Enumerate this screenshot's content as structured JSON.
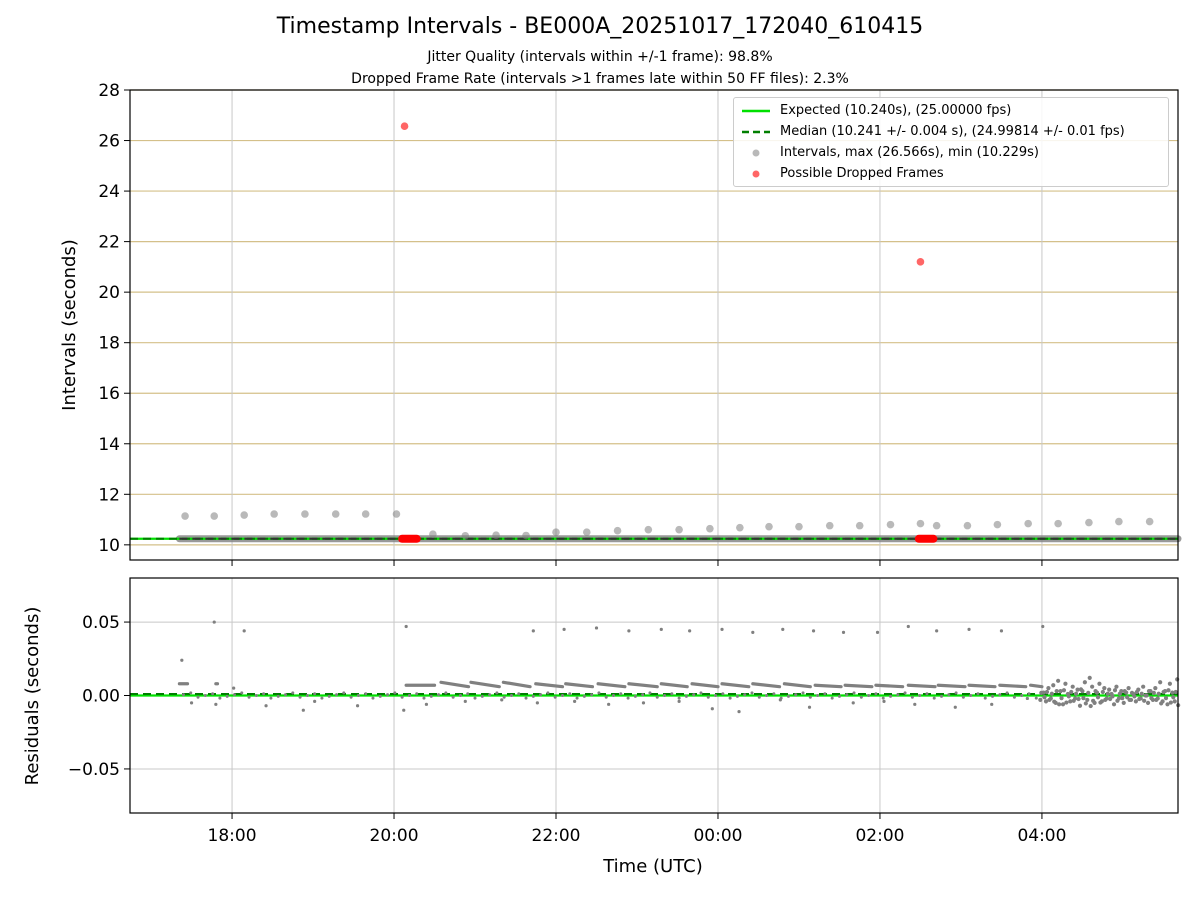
{
  "colors": {
    "expected": "#00e000",
    "median": "#007f00",
    "intervals": "#808080",
    "dropped": "#ff0000",
    "hgrid_top": "#d4c08a",
    "grid": "#c8c8c8"
  },
  "chart_data": [
    {
      "type": "scatter",
      "title": "Timestamp Intervals - BE000A_20251017_172040_610415",
      "subtitles": [
        "Jitter Quality (intervals within +/-1 frame): 98.8%",
        "Dropped Frame Rate (intervals >1 frames late within 50 FF files): 2.3%"
      ],
      "xlabel": "",
      "ylabel": "Intervals (seconds)",
      "xlim_hours": [
        16.74,
        29.68
      ],
      "ylim": [
        9.4,
        28
      ],
      "yticks": [
        10,
        12,
        14,
        16,
        18,
        20,
        22,
        24,
        26,
        28
      ],
      "xticks": [
        {
          "hour": 18,
          "label": "18:00"
        },
        {
          "hour": 20,
          "label": "20:00"
        },
        {
          "hour": 22,
          "label": "22:00"
        },
        {
          "hour": 24,
          "label": "00:00"
        },
        {
          "hour": 26,
          "label": "02:00"
        },
        {
          "hour": 28,
          "label": "04:00"
        }
      ],
      "grid": true,
      "legend_placement": "top-right",
      "legend": [
        "Expected (10.240s), (25.00000 fps)",
        "Median (10.241 +/- 0.004 s), (24.99814 +/- 0.01 fps)",
        "Intervals, max (26.566s), min (10.229s)",
        "Possible Dropped Frames"
      ],
      "expected_line": 10.24,
      "median_line": 10.241,
      "series_baseline": {
        "x_hours": [
          17.35,
          29.68
        ],
        "y": 10.24
      },
      "series_intervals_outliers": {
        "x_hours": [
          17.42,
          17.78,
          18.15,
          18.52,
          18.9,
          19.28,
          19.65,
          20.03,
          20.48,
          20.88,
          21.26,
          21.63,
          22.0,
          22.38,
          22.76,
          23.14,
          23.52,
          23.9,
          24.27,
          24.63,
          25.0,
          25.38,
          25.75,
          26.13,
          26.5,
          26.7,
          27.08,
          27.45,
          27.83,
          28.2,
          28.58,
          28.95,
          29.33
        ],
        "y": [
          11.14,
          11.14,
          11.18,
          11.22,
          11.22,
          11.22,
          11.22,
          11.22,
          10.42,
          10.36,
          10.38,
          10.37,
          10.5,
          10.5,
          10.56,
          10.6,
          10.6,
          10.64,
          10.68,
          10.72,
          10.72,
          10.76,
          10.76,
          10.8,
          10.84,
          10.76,
          10.76,
          10.8,
          10.84,
          10.84,
          10.88,
          10.92,
          10.92
        ]
      },
      "series_dropped": {
        "x_hours": [
          20.13,
          26.5
        ],
        "y": [
          26.566,
          21.2
        ]
      },
      "dropped_clusters": [
        {
          "x_start": 20.1,
          "x_end": 20.28,
          "y": 10.24
        },
        {
          "x_start": 26.48,
          "x_end": 26.66,
          "y": 10.24
        }
      ]
    },
    {
      "type": "scatter",
      "title": "",
      "xlabel": "Time (UTC)",
      "ylabel": "Residuals (seconds)",
      "xlim_hours": [
        16.74,
        29.68
      ],
      "ylim": [
        -0.08,
        0.08
      ],
      "yticks": [
        {
          "value": 0.05,
          "label": "0.05"
        },
        {
          "value": 0.0,
          "label": "0.00"
        },
        {
          "value": -0.05,
          "label": "−0.05"
        }
      ],
      "grid": true,
      "expected_line": 0.0,
      "median_line": 0.001,
      "series_spikes": {
        "x_hours": [
          17.78,
          18.15,
          20.15,
          21.72,
          22.1,
          22.5,
          22.9,
          23.3,
          23.65,
          24.05,
          24.43,
          24.8,
          25.18,
          25.55,
          25.97,
          26.35,
          26.7,
          27.1,
          27.5,
          28.01
        ],
        "y": [
          0.05,
          0.044,
          0.047,
          0.044,
          0.045,
          0.046,
          0.044,
          0.045,
          0.044,
          0.045,
          0.043,
          0.045,
          0.044,
          0.043,
          0.043,
          0.047,
          0.044,
          0.045,
          0.044,
          0.047
        ]
      },
      "series_low_outliers": {
        "x_hours": [
          17.38,
          17.5,
          17.8,
          18.02,
          18.42,
          18.88,
          19.02,
          19.55,
          20.12,
          20.4,
          20.88,
          21.33,
          21.77,
          22.23,
          22.65,
          23.08,
          23.52,
          23.93,
          24.26,
          24.77,
          25.13,
          25.67,
          26.05,
          26.43,
          26.93,
          27.38,
          27.82
        ],
        "y": [
          0.024,
          -0.005,
          -0.006,
          0.005,
          -0.007,
          -0.01,
          -0.004,
          -0.007,
          -0.01,
          -0.006,
          -0.004,
          -0.003,
          -0.005,
          -0.004,
          -0.006,
          -0.005,
          -0.004,
          -0.009,
          -0.011,
          -0.003,
          -0.008,
          -0.005,
          -0.004,
          -0.006,
          -0.008,
          -0.006,
          -0.002
        ]
      },
      "segments": [
        {
          "x0": 17.35,
          "x1": 17.45,
          "y0": 0.008,
          "y1": 0.008
        },
        {
          "x0": 17.8,
          "x1": 17.82,
          "y0": 0.008,
          "y1": 0.008
        },
        {
          "x0": 20.15,
          "x1": 20.5,
          "y0": 0.007,
          "y1": 0.007
        },
        {
          "x0": 20.58,
          "x1": 20.92,
          "y0": 0.009,
          "y1": 0.006
        },
        {
          "x0": 20.95,
          "x1": 21.3,
          "y0": 0.009,
          "y1": 0.006
        },
        {
          "x0": 21.35,
          "x1": 21.68,
          "y0": 0.009,
          "y1": 0.006
        },
        {
          "x0": 21.75,
          "x1": 22.08,
          "y0": 0.008,
          "y1": 0.006
        },
        {
          "x0": 22.12,
          "x1": 22.45,
          "y0": 0.008,
          "y1": 0.006
        },
        {
          "x0": 22.52,
          "x1": 22.85,
          "y0": 0.008,
          "y1": 0.006
        },
        {
          "x0": 22.9,
          "x1": 23.25,
          "y0": 0.008,
          "y1": 0.006
        },
        {
          "x0": 23.3,
          "x1": 23.62,
          "y0": 0.008,
          "y1": 0.006
        },
        {
          "x0": 23.68,
          "x1": 24.0,
          "y0": 0.008,
          "y1": 0.006
        },
        {
          "x0": 24.05,
          "x1": 24.38,
          "y0": 0.008,
          "y1": 0.006
        },
        {
          "x0": 24.43,
          "x1": 24.76,
          "y0": 0.008,
          "y1": 0.006
        },
        {
          "x0": 24.82,
          "x1": 25.14,
          "y0": 0.008,
          "y1": 0.006
        },
        {
          "x0": 25.2,
          "x1": 25.52,
          "y0": 0.007,
          "y1": 0.006
        },
        {
          "x0": 25.57,
          "x1": 25.9,
          "y0": 0.007,
          "y1": 0.006
        },
        {
          "x0": 25.95,
          "x1": 26.28,
          "y0": 0.007,
          "y1": 0.006
        },
        {
          "x0": 26.35,
          "x1": 26.68,
          "y0": 0.007,
          "y1": 0.006
        },
        {
          "x0": 26.72,
          "x1": 27.05,
          "y0": 0.007,
          "y1": 0.006
        },
        {
          "x0": 27.1,
          "x1": 27.42,
          "y0": 0.007,
          "y1": 0.006
        },
        {
          "x0": 27.48,
          "x1": 27.8,
          "y0": 0.007,
          "y1": 0.006
        },
        {
          "x0": 27.86,
          "x1": 28.0,
          "y0": 0.007,
          "y1": 0.006
        }
      ],
      "dense_region": {
        "x_start": 27.95,
        "x_end": 29.68,
        "points": [
          [
            27.98,
            -0.003
          ],
          [
            28.02,
            0.002
          ],
          [
            28.05,
            -0.004
          ],
          [
            28.08,
            0.005
          ],
          [
            28.11,
            -0.002
          ],
          [
            28.14,
            0.007
          ],
          [
            28.17,
            -0.005
          ],
          [
            28.2,
            0.01
          ],
          [
            28.23,
            0.003
          ],
          [
            28.26,
            -0.006
          ],
          [
            28.29,
            0.008
          ],
          [
            28.32,
            0.001
          ],
          [
            28.35,
            -0.004
          ],
          [
            28.38,
            0.006
          ],
          [
            28.41,
            -0.002
          ],
          [
            28.44,
            0.004
          ],
          [
            28.47,
            -0.007
          ],
          [
            28.5,
            0.003
          ],
          [
            28.53,
            0.009
          ],
          [
            28.56,
            -0.003
          ],
          [
            28.59,
            0.012
          ],
          [
            28.62,
            0.006
          ],
          [
            28.65,
            -0.005
          ],
          [
            28.68,
            0.002
          ],
          [
            28.71,
            0.008
          ],
          [
            28.74,
            -0.004
          ],
          [
            28.77,
            0.005
          ],
          [
            28.8,
            -0.002
          ],
          [
            28.83,
            0.004
          ],
          [
            28.86,
            0.001
          ],
          [
            28.89,
            -0.006
          ],
          [
            28.92,
            0.006
          ],
          [
            28.95,
            -0.002
          ],
          [
            28.98,
            0.003
          ],
          [
            29.01,
            -0.005
          ],
          [
            29.04,
            0.002
          ],
          [
            29.07,
            0.005
          ],
          [
            29.1,
            -0.003
          ],
          [
            29.13,
            0.001
          ],
          [
            29.16,
            -0.004
          ],
          [
            29.19,
            0.004
          ],
          [
            29.22,
            -0.002
          ],
          [
            29.25,
            0.006
          ],
          [
            29.28,
            0.0
          ],
          [
            29.31,
            -0.005
          ],
          [
            29.34,
            0.003
          ],
          [
            29.37,
            -0.003
          ],
          [
            29.4,
            0.005
          ],
          [
            29.43,
            -0.002
          ],
          [
            29.46,
            0.009
          ],
          [
            29.49,
            -0.004
          ],
          [
            29.52,
            0.003
          ],
          [
            29.55,
            -0.006
          ],
          [
            29.58,
            0.008
          ],
          [
            29.61,
            0.002
          ],
          [
            29.64,
            -0.004
          ],
          [
            29.67,
            0.011
          ]
        ]
      }
    }
  ]
}
